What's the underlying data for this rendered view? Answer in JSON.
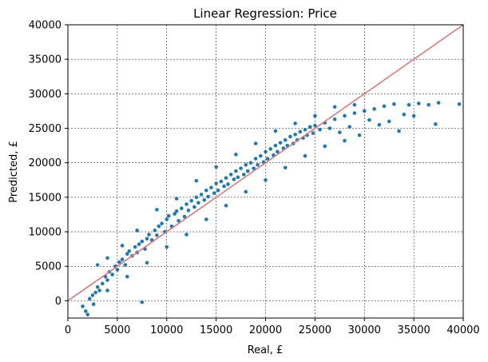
{
  "chart_data": {
    "type": "scatter",
    "title": "Linear Regression: Price",
    "xlabel": "Real, £",
    "ylabel": "Predicted, £",
    "xlim": [
      0,
      40000
    ],
    "ylim": [
      -2500,
      40000
    ],
    "xticks": [
      "0",
      "5000",
      "10000",
      "15000",
      "20000",
      "25000",
      "30000",
      "35000",
      "40000"
    ],
    "yticks": [
      "0",
      "5000",
      "10000",
      "15000",
      "20000",
      "25000",
      "30000",
      "35000",
      "40000"
    ],
    "grid": true,
    "grid_style": "dashed",
    "point_color": "#1f77b4",
    "reference_line": {
      "from": [
        0,
        0
      ],
      "to": [
        40000,
        40000
      ],
      "color": "#d97a7a"
    },
    "series": [
      {
        "points": [
          [
            1500,
            -800
          ],
          [
            1800,
            -1500
          ],
          [
            2000,
            -2000
          ],
          [
            2200,
            300
          ],
          [
            2500,
            800
          ],
          [
            2600,
            -500
          ],
          [
            2800,
            1200
          ],
          [
            3000,
            2000
          ],
          [
            3200,
            1500
          ],
          [
            3500,
            2500
          ],
          [
            3800,
            3500
          ],
          [
            4000,
            3000
          ],
          [
            4200,
            4200
          ],
          [
            4500,
            3800
          ],
          [
            4800,
            5000
          ],
          [
            5000,
            4500
          ],
          [
            5200,
            5600
          ],
          [
            5500,
            6000
          ],
          [
            5800,
            5200
          ],
          [
            6000,
            6800
          ],
          [
            6200,
            7200
          ],
          [
            6500,
            6500
          ],
          [
            6800,
            7800
          ],
          [
            7000,
            7000
          ],
          [
            7200,
            8200
          ],
          [
            7500,
            8600
          ],
          [
            7500,
            -200
          ],
          [
            7800,
            7500
          ],
          [
            8000,
            9000
          ],
          [
            8200,
            9600
          ],
          [
            8500,
            8800
          ],
          [
            8800,
            10200
          ],
          [
            9000,
            9500
          ],
          [
            9200,
            10800
          ],
          [
            9500,
            11200
          ],
          [
            9800,
            10000
          ],
          [
            10000,
            11800
          ],
          [
            10200,
            12300
          ],
          [
            10500,
            10800
          ],
          [
            10800,
            12600
          ],
          [
            11000,
            13000
          ],
          [
            11200,
            11600
          ],
          [
            11500,
            13400
          ],
          [
            11800,
            12200
          ],
          [
            12000,
            14000
          ],
          [
            12200,
            13100
          ],
          [
            12500,
            14500
          ],
          [
            12800,
            13600
          ],
          [
            13000,
            15000
          ],
          [
            13200,
            14200
          ],
          [
            13500,
            15400
          ],
          [
            13800,
            14600
          ],
          [
            14000,
            16000
          ],
          [
            14200,
            15100
          ],
          [
            14500,
            16400
          ],
          [
            14800,
            15600
          ],
          [
            15000,
            17000
          ],
          [
            15200,
            16000
          ],
          [
            15500,
            17300
          ],
          [
            15800,
            16600
          ],
          [
            16000,
            17800
          ],
          [
            16200,
            16900
          ],
          [
            16500,
            18300
          ],
          [
            16800,
            17600
          ],
          [
            17000,
            18800
          ],
          [
            17200,
            17900
          ],
          [
            17500,
            19200
          ],
          [
            17800,
            18300
          ],
          [
            18000,
            19700
          ],
          [
            18200,
            18800
          ],
          [
            18500,
            20000
          ],
          [
            18800,
            19200
          ],
          [
            19000,
            20600
          ],
          [
            19200,
            19700
          ],
          [
            19500,
            21000
          ],
          [
            19800,
            20100
          ],
          [
            20000,
            21600
          ],
          [
            20200,
            20600
          ],
          [
            20500,
            22000
          ],
          [
            20800,
            21100
          ],
          [
            21000,
            22500
          ],
          [
            21200,
            21600
          ],
          [
            21500,
            22900
          ],
          [
            21800,
            22100
          ],
          [
            22000,
            23300
          ],
          [
            22200,
            22500
          ],
          [
            22500,
            23800
          ],
          [
            22800,
            22800
          ],
          [
            23000,
            24100
          ],
          [
            23200,
            23300
          ],
          [
            23500,
            24500
          ],
          [
            23800,
            23600
          ],
          [
            24000,
            24800
          ],
          [
            24200,
            24000
          ],
          [
            24500,
            25200
          ],
          [
            24800,
            24300
          ],
          [
            25000,
            25400
          ],
          [
            25500,
            24800
          ],
          [
            26000,
            25800
          ],
          [
            26500,
            25000
          ],
          [
            27000,
            26300
          ],
          [
            27500,
            24400
          ],
          [
            28000,
            26800
          ],
          [
            28500,
            25200
          ],
          [
            29000,
            27200
          ],
          [
            29500,
            24000
          ],
          [
            30000,
            27500
          ],
          [
            30500,
            26200
          ],
          [
            31000,
            27800
          ],
          [
            31500,
            25500
          ],
          [
            32000,
            28200
          ],
          [
            32500,
            26000
          ],
          [
            33000,
            28500
          ],
          [
            33500,
            24600
          ],
          [
            34000,
            27000
          ],
          [
            34500,
            28400
          ],
          [
            35000,
            26800
          ],
          [
            35500,
            28600
          ],
          [
            36500,
            28400
          ],
          [
            37200,
            25600
          ],
          [
            37500,
            28700
          ],
          [
            39600,
            28500
          ],
          [
            3000,
            5200
          ],
          [
            4000,
            6200
          ],
          [
            5500,
            8000
          ],
          [
            7000,
            10200
          ],
          [
            9000,
            13200
          ],
          [
            11000,
            14800
          ],
          [
            13000,
            17400
          ],
          [
            15000,
            19400
          ],
          [
            17000,
            21200
          ],
          [
            19000,
            22800
          ],
          [
            21000,
            24600
          ],
          [
            23000,
            25700
          ],
          [
            25000,
            26800
          ],
          [
            27000,
            28100
          ],
          [
            29000,
            28400
          ],
          [
            4000,
            1500
          ],
          [
            6000,
            3500
          ],
          [
            8000,
            5500
          ],
          [
            10000,
            7800
          ],
          [
            12000,
            9600
          ],
          [
            14000,
            11800
          ],
          [
            16000,
            13800
          ],
          [
            18000,
            15800
          ],
          [
            20000,
            17500
          ],
          [
            22000,
            19300
          ],
          [
            24000,
            21000
          ],
          [
            26000,
            22400
          ],
          [
            28000,
            23200
          ]
        ]
      }
    ]
  }
}
